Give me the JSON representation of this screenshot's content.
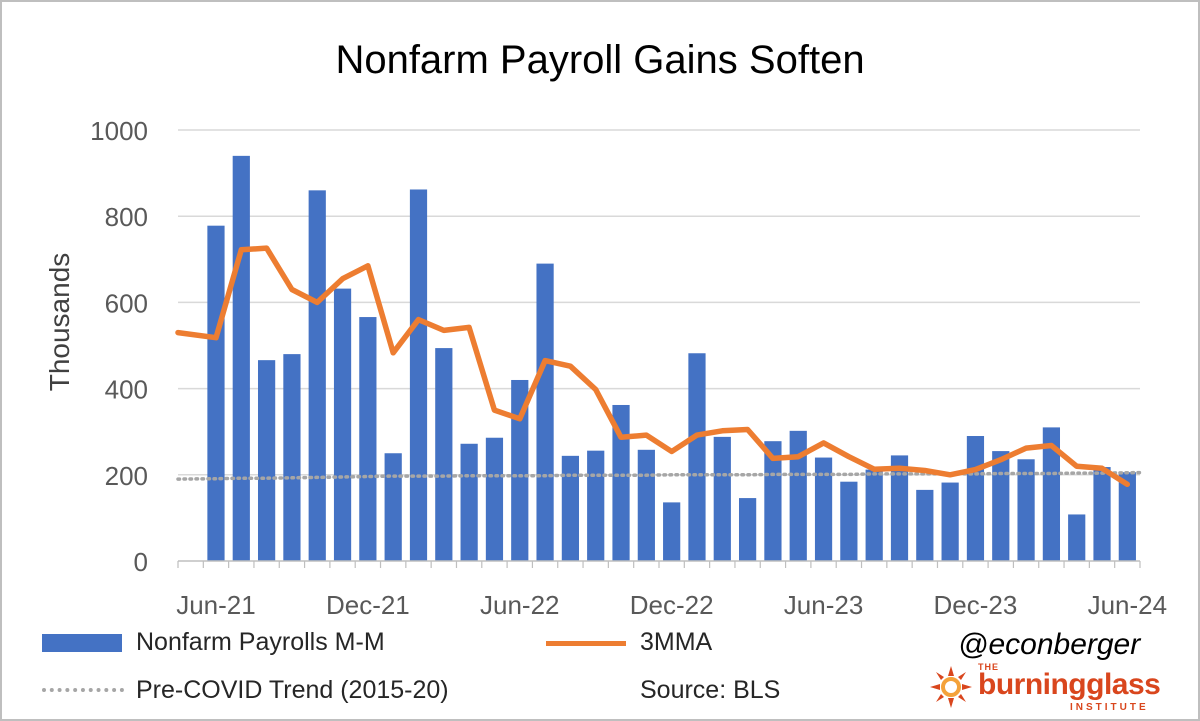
{
  "chart_data": {
    "type": "bar+line",
    "title": "Nonfarm Payroll Gains Soften",
    "ylabel": "Thousands",
    "xlabel": "",
    "ylim": [
      0,
      1000
    ],
    "yticks": [
      0,
      200,
      400,
      600,
      800,
      1000
    ],
    "grid": true,
    "categories": [
      "May-21",
      "Jun-21",
      "Jul-21",
      "Aug-21",
      "Sep-21",
      "Oct-21",
      "Nov-21",
      "Dec-21",
      "Jan-22",
      "Feb-22",
      "Mar-22",
      "Apr-22",
      "May-22",
      "Jun-22",
      "Jul-22",
      "Aug-22",
      "Sep-22",
      "Oct-22",
      "Nov-22",
      "Dec-22",
      "Jan-23",
      "Feb-23",
      "Mar-23",
      "Apr-23",
      "May-23",
      "Jun-23",
      "Jul-23",
      "Aug-23",
      "Sep-23",
      "Oct-23",
      "Nov-23",
      "Dec-23",
      "Jan-24",
      "Feb-24",
      "Mar-24",
      "Apr-24",
      "May-24",
      "Jun-24"
    ],
    "xtick_labels": [
      {
        "index": 1,
        "label": "Jun-21"
      },
      {
        "index": 7,
        "label": "Dec-21"
      },
      {
        "index": 13,
        "label": "Jun-22"
      },
      {
        "index": 19,
        "label": "Dec-22"
      },
      {
        "index": 25,
        "label": "Jun-23"
      },
      {
        "index": 31,
        "label": "Dec-23"
      },
      {
        "index": 37,
        "label": "Jun-24"
      }
    ],
    "series": [
      {
        "name": "Nonfarm Payrolls M-M",
        "kind": "bar",
        "color": "#4472c4",
        "values": [
          0,
          778,
          940,
          466,
          480,
          860,
          632,
          566,
          250,
          862,
          494,
          272,
          286,
          420,
          690,
          244,
          256,
          362,
          258,
          136,
          482,
          288,
          146,
          278,
          302,
          240,
          184,
          212,
          245,
          165,
          182,
          290,
          255,
          236,
          310,
          108,
          218,
          206
        ]
      },
      {
        "name": "3MMA",
        "kind": "line",
        "color": "#ed7d31",
        "values": [
          530,
          518,
          722,
          726,
          630,
          600,
          655,
          685,
          483,
          560,
          535,
          542,
          350,
          330,
          465,
          452,
          398,
          287,
          292,
          254,
          292,
          302,
          305,
          238,
          242,
          274,
          242,
          213,
          215,
          210,
          200,
          212,
          235,
          262,
          268,
          220,
          215,
          178
        ]
      },
      {
        "name": "Pre-COVID Trend (2015-20)",
        "kind": "line",
        "style": "dotted",
        "color": "#a6a6a6",
        "values": [
          190,
          191,
          192,
          192,
          193,
          194,
          195,
          196,
          197,
          197,
          197,
          198,
          198,
          198,
          198,
          199,
          199,
          199,
          199,
          200,
          200,
          200,
          200,
          201,
          201,
          201,
          201,
          202,
          202,
          202,
          202,
          202,
          203,
          203,
          203,
          204,
          204,
          205
        ]
      }
    ],
    "legend": "bottom",
    "annotations": [
      "Source: BLS"
    ]
  },
  "branding": {
    "handle": "@econberger",
    "logo_the": "THE",
    "logo_name": "burningglass",
    "logo_sub": "INSTITUTE",
    "logo_color": "#d9461d"
  }
}
